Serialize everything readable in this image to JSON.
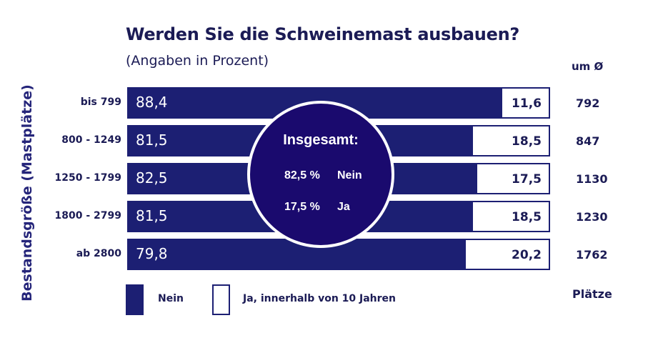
{
  "chart_data": {
    "type": "bar",
    "orientation": "horizontal",
    "stacked": true,
    "title": "Werden Sie die Schweinemast ausbauen?",
    "subtitle": "(Angaben in Prozent)",
    "ylabel": "Bestandsgröße (Mastplätze)",
    "categories": [
      "bis 799",
      "800 - 1249",
      "1250 - 1799",
      "1800 - 2799",
      "ab 2800"
    ],
    "series": [
      {
        "name": "Nein",
        "values": [
          88.4,
          81.5,
          82.5,
          81.5,
          79.8
        ],
        "labels": [
          "88,4",
          "81,5",
          "82,5",
          "81,5",
          "79,8"
        ],
        "color": "#1c1f73"
      },
      {
        "name": "Ja, innerhalb von 10 Jahren",
        "values": [
          11.6,
          18.5,
          17.5,
          18.5,
          20.2
        ],
        "labels": [
          "11,6",
          "18,5",
          "17,5",
          "18,5",
          "20,2"
        ],
        "color": "#ffffff"
      }
    ],
    "xlim": [
      0,
      100
    ],
    "average": {
      "header": "um Ø",
      "values": [
        "792",
        "847",
        "1130",
        "1230",
        "1762"
      ],
      "unit": "Plätze"
    },
    "summary": {
      "title": "Insgesamt:",
      "lines": [
        {
          "pct": "82,5 %",
          "label": "Nein"
        },
        {
          "pct": "17,5 %",
          "label": "Ja"
        }
      ]
    },
    "legend": {
      "position": "bottom-left",
      "items": [
        "Nein",
        "Ja, innerhalb von 10 Jahren"
      ]
    }
  }
}
